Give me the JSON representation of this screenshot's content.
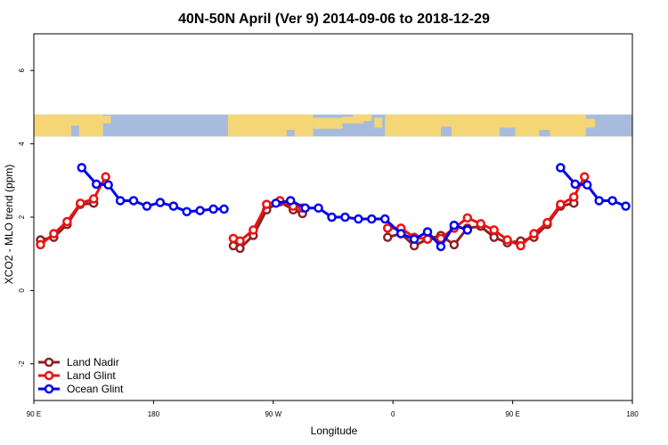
{
  "chart_data": {
    "type": "line",
    "title": "40N-50N April (Ver 9)   2014-09-06 to 2018-12-29",
    "xlabel": "Longitude",
    "ylabel": "XCO2 - MLO trend (ppm)",
    "xlim": [
      90,
      540
    ],
    "ylim": [
      -3,
      7
    ],
    "x_ticks": [
      {
        "value": 90,
        "label": "90 E"
      },
      {
        "value": 180,
        "label": "180"
      },
      {
        "value": 270,
        "label": "90 W"
      },
      {
        "value": 360,
        "label": "0"
      },
      {
        "value": 450,
        "label": "90 E"
      },
      {
        "value": 540,
        "label": "180"
      }
    ],
    "y_ticks": [
      {
        "value": -2,
        "label": "-2"
      },
      {
        "value": 0,
        "label": "0"
      },
      {
        "value": 2,
        "label": "2"
      },
      {
        "value": 4,
        "label": "4"
      },
      {
        "value": 6,
        "label": "6"
      }
    ],
    "legend_position": "bottom-left",
    "map_strip": {
      "ymin": 4.2,
      "ymax": 4.8,
      "ocean_color": "#a7bcdc",
      "land_color": "#f5d676"
    },
    "series": [
      {
        "name": "Land Nadir",
        "color": "#8b2323",
        "segments": [
          [
            [
              95,
              1.38
            ],
            [
              105,
              1.45
            ],
            [
              115,
              1.8
            ],
            [
              125,
              2.35
            ],
            [
              135,
              2.38
            ]
          ],
          [
            [
              240,
              1.22
            ],
            [
              245,
              1.15
            ],
            [
              255,
              1.5
            ],
            [
              265,
              2.2
            ],
            [
              275,
              2.42
            ],
            [
              285,
              2.2
            ],
            [
              292,
              2.1
            ]
          ],
          [
            [
              356,
              1.45
            ],
            [
              366,
              1.55
            ],
            [
              376,
              1.22
            ],
            [
              386,
              1.4
            ],
            [
              396,
              1.5
            ],
            [
              406,
              1.25
            ],
            [
              416,
              1.7
            ],
            [
              426,
              1.75
            ],
            [
              436,
              1.45
            ],
            [
              446,
              1.3
            ],
            [
              456,
              1.35
            ],
            [
              466,
              1.45
            ],
            [
              476,
              1.8
            ],
            [
              486,
              2.3
            ],
            [
              496,
              2.38
            ]
          ]
        ]
      },
      {
        "name": "Land Glint",
        "color": "#ee1111",
        "segments": [
          [
            [
              95,
              1.25
            ],
            [
              105,
              1.55
            ],
            [
              115,
              1.88
            ],
            [
              125,
              2.38
            ],
            [
              135,
              2.5
            ],
            [
              144,
              3.1
            ]
          ],
          [
            [
              240,
              1.42
            ],
            [
              245,
              1.35
            ],
            [
              255,
              1.65
            ],
            [
              265,
              2.35
            ],
            [
              275,
              2.45
            ],
            [
              285,
              2.3
            ],
            [
              292,
              2.25
            ]
          ],
          [
            [
              356,
              1.7
            ],
            [
              366,
              1.7
            ],
            [
              376,
              1.45
            ],
            [
              386,
              1.4
            ],
            [
              396,
              1.42
            ],
            [
              406,
              1.7
            ],
            [
              416,
              1.98
            ],
            [
              426,
              1.82
            ],
            [
              436,
              1.65
            ],
            [
              446,
              1.38
            ],
            [
              456,
              1.22
            ],
            [
              466,
              1.55
            ],
            [
              476,
              1.85
            ],
            [
              486,
              2.35
            ],
            [
              496,
              2.55
            ],
            [
              504,
              3.1
            ]
          ]
        ]
      },
      {
        "name": "Ocean Glint",
        "color": "#0000ee",
        "segments": [
          [
            [
              126,
              3.35
            ],
            [
              137,
              2.9
            ],
            [
              146,
              2.88
            ],
            [
              155,
              2.45
            ],
            [
              165,
              2.45
            ],
            [
              175,
              2.3
            ],
            [
              185,
              2.4
            ],
            [
              195,
              2.3
            ],
            [
              205,
              2.15
            ],
            [
              215,
              2.18
            ],
            [
              225,
              2.22
            ],
            [
              233,
              2.22
            ]
          ],
          [
            [
              272,
              2.38
            ],
            [
              283,
              2.45
            ],
            [
              294,
              2.25
            ],
            [
              304,
              2.25
            ],
            [
              314,
              2.0
            ],
            [
              324,
              2.0
            ],
            [
              334,
              1.95
            ],
            [
              344,
              1.95
            ],
            [
              354,
              1.95
            ],
            [
              366,
              1.55
            ],
            [
              376,
              1.4
            ],
            [
              386,
              1.6
            ],
            [
              396,
              1.2
            ],
            [
              406,
              1.78
            ],
            [
              416,
              1.65
            ]
          ],
          [
            [
              486,
              3.35
            ],
            [
              497,
              2.9
            ],
            [
              506,
              2.88
            ],
            [
              515,
              2.45
            ],
            [
              525,
              2.45
            ],
            [
              535,
              2.3
            ]
          ]
        ]
      }
    ]
  }
}
